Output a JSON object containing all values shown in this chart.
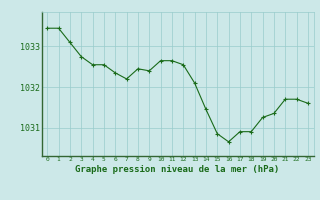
{
  "x": [
    0,
    1,
    2,
    3,
    4,
    5,
    6,
    7,
    8,
    9,
    10,
    11,
    12,
    13,
    14,
    15,
    16,
    17,
    18,
    19,
    20,
    21,
    22,
    23
  ],
  "y": [
    1033.45,
    1033.45,
    1033.1,
    1032.75,
    1032.55,
    1032.55,
    1032.35,
    1032.2,
    1032.45,
    1032.4,
    1032.65,
    1032.65,
    1032.55,
    1032.1,
    1031.45,
    1030.85,
    1030.65,
    1030.9,
    1030.9,
    1031.25,
    1031.35,
    1031.7,
    1031.7,
    1031.6
  ],
  "line_color": "#1a6b1a",
  "marker_color": "#1a6b1a",
  "bg_color": "#cce8e8",
  "grid_color": "#99cccc",
  "text_color": "#1a6b1a",
  "xlabel": "Graphe pression niveau de la mer (hPa)",
  "yticks": [
    1031,
    1032,
    1033
  ],
  "ylim": [
    1030.3,
    1033.85
  ],
  "xlim": [
    -0.5,
    23.5
  ]
}
